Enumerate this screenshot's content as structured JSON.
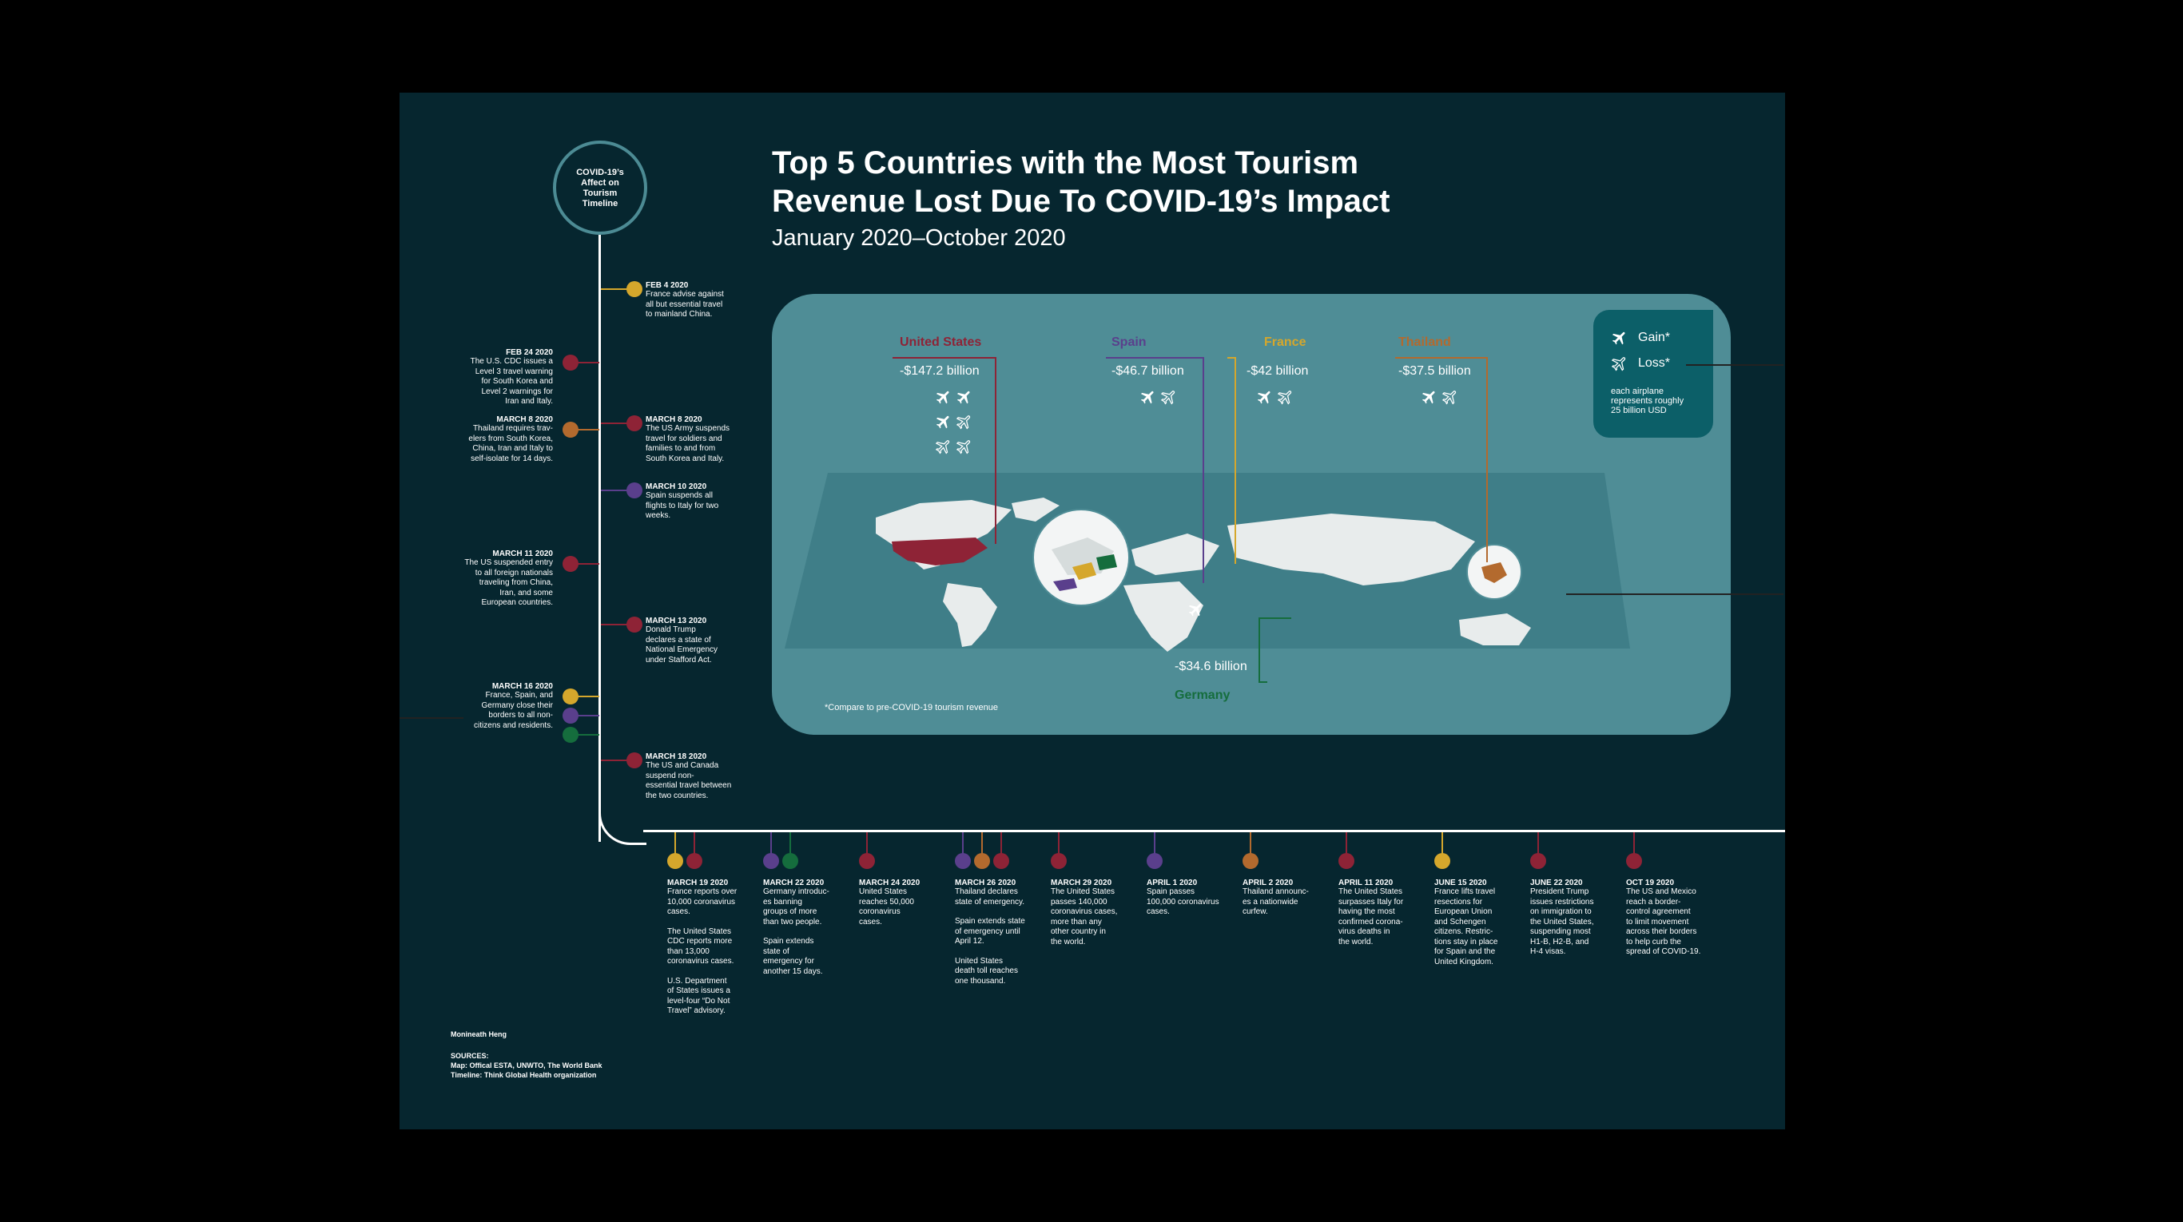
{
  "title_lines": [
    "Top 5 Countries with the Most Tourism",
    "Revenue Lost Due To COVID-19’s Impact"
  ],
  "subtitle": "January 2020–October 2020",
  "timeline_title": [
    "COVID-19’s",
    "Affect on",
    "Tourism",
    "Timeline"
  ],
  "legend": {
    "gain": "Gain*",
    "loss": "Loss*",
    "note_lines": [
      "each airplane",
      "represents roughly",
      "25 billion USD"
    ]
  },
  "footnote": "*Compare to pre-COVID-19 tourism revenue",
  "colors": {
    "usa": "#8e2336",
    "spain": "#5a3f8c",
    "france": "#d5a72c",
    "thailand": "#b36a2e",
    "germany": "#156d3d",
    "panel": "#4f8d96",
    "background": "#06262f"
  },
  "chart_data": {
    "type": "pictograph-map",
    "unit": "billion USD",
    "plane_value": 25,
    "countries": [
      {
        "name": "United States",
        "loss": "-$147.2 billion",
        "value": -147.2,
        "color": "#8e2336"
      },
      {
        "name": "Spain",
        "loss": "-$46.7 billion",
        "value": -46.7,
        "color": "#5a3f8c"
      },
      {
        "name": "France",
        "loss": "-$42 billion",
        "value": -42,
        "color": "#d5a72c"
      },
      {
        "name": "Thailand",
        "loss": "-$37.5 billion",
        "value": -37.5,
        "color": "#b36a2e"
      },
      {
        "name": "Germany",
        "loss": "-$34.6 billion",
        "value": -34.6,
        "color": "#156d3d"
      }
    ]
  },
  "timeline_left": [
    {
      "date": "FEB 24 2020",
      "lines": [
        "The U.S. CDC issues a",
        "Level 3 travel warning",
        "for South Korea and",
        "Level 2 warnings for",
        "Iran and Italy."
      ],
      "colors": [
        "#8e2336"
      ]
    },
    {
      "date": "MARCH 8 2020",
      "lines": [
        "Thailand requires trav-",
        "elers from South Korea,",
        "China, Iran and Italy to",
        "self-isolate for 14 days."
      ],
      "colors": [
        "#b36a2e"
      ]
    },
    {
      "date": "MARCH 11 2020",
      "lines": [
        "The US suspended entry",
        "to all foreign nationals",
        "traveling from China,",
        "Iran, and some",
        "European countries."
      ],
      "colors": [
        "#8e2336"
      ]
    },
    {
      "date": "MARCH 16 2020",
      "lines": [
        "France, Spain, and",
        "Germany close their",
        "borders to all non-",
        "citizens and residents."
      ],
      "colors": [
        "#d5a72c",
        "#5a3f8c",
        "#156d3d"
      ]
    }
  ],
  "timeline_right": [
    {
      "date": "FEB 4 2020",
      "lines": [
        "France advise against",
        "all but essential travel",
        "to mainland China."
      ],
      "colors": [
        "#d5a72c"
      ]
    },
    {
      "date": "MARCH 8 2020",
      "lines": [
        "The US Army suspends",
        "travel for soldiers and",
        "families to and from",
        "South Korea and Italy."
      ],
      "colors": [
        "#8e2336"
      ]
    },
    {
      "date": "MARCH 10 2020",
      "lines": [
        "Spain suspends all",
        "flights to Italy for two",
        "weeks."
      ],
      "colors": [
        "#5a3f8c"
      ]
    },
    {
      "date": "MARCH 13 2020",
      "lines": [
        "Donald Trump",
        "declares a state of",
        "National Emergency",
        "under Stafford Act."
      ],
      "colors": [
        "#8e2336"
      ]
    },
    {
      "date": "MARCH 18 2020",
      "lines": [
        "The US and Canada",
        "suspend non-",
        "essential travel between",
        "the two countries."
      ],
      "colors": [
        "#8e2336"
      ]
    }
  ],
  "timeline_bottom": [
    {
      "date": "MARCH 19 2020",
      "lines": [
        "France reports over",
        "10,000 coronavirus",
        "cases.",
        "",
        "The United States",
        "CDC reports more",
        "than 13,000",
        "coronavirus cases.",
        "",
        "U.S. Department",
        "of States issues a",
        "level-four “Do Not",
        "Travel” advisory."
      ],
      "colors": [
        "#d5a72c",
        "#8e2336"
      ]
    },
    {
      "date": "MARCH 22 2020",
      "lines": [
        "Germany introduc-",
        "es banning",
        "groups of more",
        "than two people.",
        "",
        "Spain extends",
        "state of",
        "emergency for",
        "another 15 days."
      ],
      "colors": [
        "#5a3f8c",
        "#156d3d"
      ]
    },
    {
      "date": "MARCH 24 2020",
      "lines": [
        "United States",
        "reaches 50,000",
        "coronavirus",
        "cases."
      ],
      "colors": [
        "#8e2336"
      ]
    },
    {
      "date": "MARCH 26 2020",
      "lines": [
        "Thailand declares",
        "state of emergency.",
        "",
        "Spain extends state",
        "of emergency until",
        "April 12.",
        "",
        "United States",
        "death toll reaches",
        "one thousand."
      ],
      "colors": [
        "#5a3f8c",
        "#b36a2e",
        "#8e2336"
      ]
    },
    {
      "date": "MARCH 29 2020",
      "lines": [
        "The United States",
        "passes 140,000",
        "coronavirus cases,",
        "more than any",
        "other country in",
        "the world."
      ],
      "colors": [
        "#8e2336"
      ]
    },
    {
      "date": "APRIL 1 2020",
      "lines": [
        "Spain passes",
        "100,000 coronavirus",
        "cases."
      ],
      "colors": [
        "#5a3f8c"
      ]
    },
    {
      "date": "APRIL 2 2020",
      "lines": [
        "Thailand announc-",
        "es a nationwide",
        "curfew."
      ],
      "colors": [
        "#b36a2e"
      ]
    },
    {
      "date": "APRIL 11 2020",
      "lines": [
        "The United States",
        "surpasses Italy for",
        "having the most",
        "confirmed corona-",
        "virus deaths in",
        "the world."
      ],
      "colors": [
        "#8e2336"
      ]
    },
    {
      "date": "JUNE 15 2020",
      "lines": [
        "France lifts travel",
        "resections for",
        "European Union",
        "and Schengen",
        "citizens. Restric-",
        "tions stay in place",
        "for Spain and the",
        "United Kingdom."
      ],
      "colors": [
        "#d5a72c"
      ]
    },
    {
      "date": "JUNE 22 2020",
      "lines": [
        "President Trump",
        "issues restrictions",
        "on immigration to",
        "the United States,",
        "suspending most",
        "H1-B, H2-B, and",
        "H-4 visas."
      ],
      "colors": [
        "#8e2336"
      ]
    },
    {
      "date": "OCT 19 2020",
      "lines": [
        "The US and Mexico",
        "reach a border-",
        "control agreement",
        "to limit movement",
        "across their borders",
        "to help curb the",
        "spread of COVID-19."
      ],
      "colors": [
        "#8e2336"
      ]
    }
  ],
  "credit": "Monineath Heng",
  "sources": [
    "SOURCES:",
    "Map: Offical ESTA, UNWTO, The World Bank",
    "Timeline: Think Global Health organization"
  ]
}
